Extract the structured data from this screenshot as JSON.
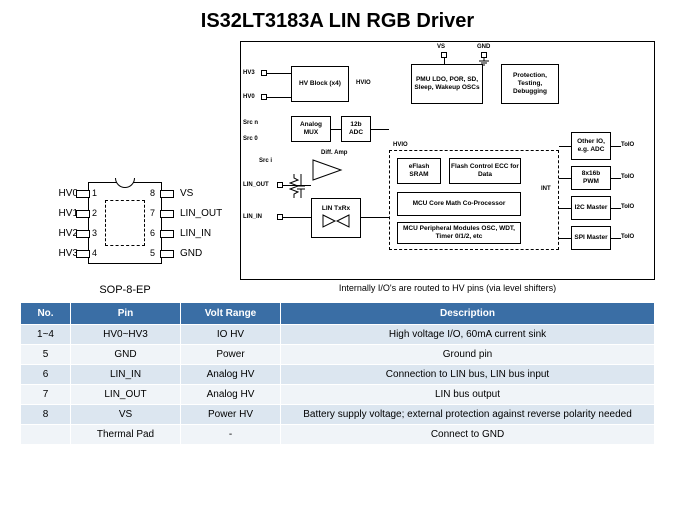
{
  "title": "IS32LT3183A LIN RGB Driver",
  "chip": {
    "package_label": "SOP-8-EP",
    "left_pins": [
      {
        "num": "1",
        "label": "HV0"
      },
      {
        "num": "2",
        "label": "HV1"
      },
      {
        "num": "3",
        "label": "HV2"
      },
      {
        "num": "4",
        "label": "HV3"
      }
    ],
    "right_pins": [
      {
        "num": "8",
        "label": "VS"
      },
      {
        "num": "7",
        "label": "LIN_OUT"
      },
      {
        "num": "6",
        "label": "LIN_IN"
      },
      {
        "num": "5",
        "label": "GND"
      }
    ]
  },
  "diagram": {
    "note": "Internally I/O's are routed to HV pins (via level shifters)",
    "left_pins": [
      "HV3",
      "HV0",
      "Src n",
      "Src 0",
      "Src i",
      "LIN_OUT",
      "LIN_IN"
    ],
    "top_pins": [
      "VS",
      "GND"
    ],
    "right_labels": [
      "ToIO",
      "ToIO",
      "ToIO",
      "ToIO"
    ],
    "blocks": {
      "hv": "HV Block\n(x4)",
      "pmu": "PMU\nLDO, POR, SD,\nSleep, Wakeup\nOSCs",
      "prot": "Protection,\nTesting,\nDebugging",
      "amux": "Analog\nMUX",
      "adc": "12b\nADC",
      "diff": "Diff. Amp",
      "lin": "LIN\nTxRx",
      "eflash": "eFlash\nSRAM",
      "fctl": "Flash Control\nECC for Data",
      "mcu": "MCU Core\nMath Co-Processor",
      "periph": "MCU Peripheral Modules\nOSC, WDT, Timer 0/1/2, etc",
      "otherio": "Other\nIO, e.g.\nADC",
      "pwm": "8x16b\nPWM",
      "i2c": "I2C\nMaster",
      "spi": "SPI\nMaster",
      "hvio1": "HVIO",
      "hvio2": "HVIO",
      "int": "INT"
    }
  },
  "table": {
    "headers": [
      "No.",
      "Pin",
      "Volt Range",
      "Description"
    ],
    "rows": [
      [
        "1~4",
        "HV0~HV3",
        "IO HV",
        "High voltage I/O,  60mA current sink"
      ],
      [
        "5",
        "GND",
        "Power",
        "Ground pin"
      ],
      [
        "6",
        "LIN_IN",
        "Analog HV",
        "Connection to LIN bus, LIN bus input"
      ],
      [
        "7",
        "LIN_OUT",
        "Analog HV",
        "LIN bus output"
      ],
      [
        "8",
        "VS",
        "Power HV",
        "Battery supply voltage;  external protection against reverse polarity needed"
      ],
      [
        "",
        "Thermal Pad",
        "-",
        "Connect to GND"
      ]
    ]
  },
  "colors": {
    "header_bg": "#3a6ea5",
    "row_odd": "#dce6f0",
    "row_even": "#f0f4f8"
  }
}
